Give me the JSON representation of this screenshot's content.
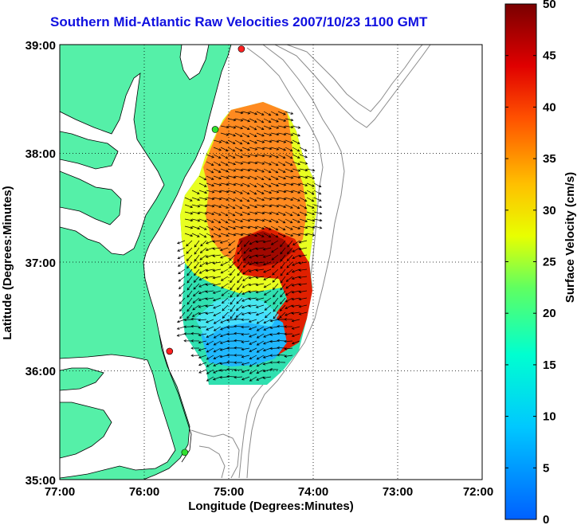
{
  "title": "Southern Mid-Atlantic Raw Velocities 2007/10/23 1100 GMT",
  "map": {
    "xlabel": "Longitude (Degrees:Minutes)",
    "ylabel": "Latitude (Degrees:Minutes)",
    "x_ticks": [
      "77:00",
      "76:00",
      "75:00",
      "74:00",
      "73:00",
      "72:00"
    ],
    "y_ticks": [
      "39:00",
      "38:00",
      "37:00",
      "36:00",
      "35:00"
    ],
    "lon_range": [
      -77,
      -72
    ],
    "lat_range": [
      35,
      39
    ],
    "land_color": "#55f0a8",
    "gridlines": "dotted"
  },
  "colorbar": {
    "label": "Surface Velocity (cm/s)",
    "ticks": [
      "50",
      "45",
      "40",
      "35",
      "30",
      "25",
      "20",
      "15",
      "10",
      "5",
      "0"
    ],
    "range": [
      0,
      50
    ],
    "colormap": "jet"
  },
  "stations": [
    {
      "lon": -74.85,
      "lat": 38.96,
      "color": "#ff2020"
    },
    {
      "lon": -75.16,
      "lat": 38.22,
      "color": "#30e030"
    },
    {
      "lon": -75.7,
      "lat": 36.18,
      "color": "#ff2020"
    },
    {
      "lon": -75.52,
      "lat": 35.25,
      "color": "#30e030"
    }
  ]
}
